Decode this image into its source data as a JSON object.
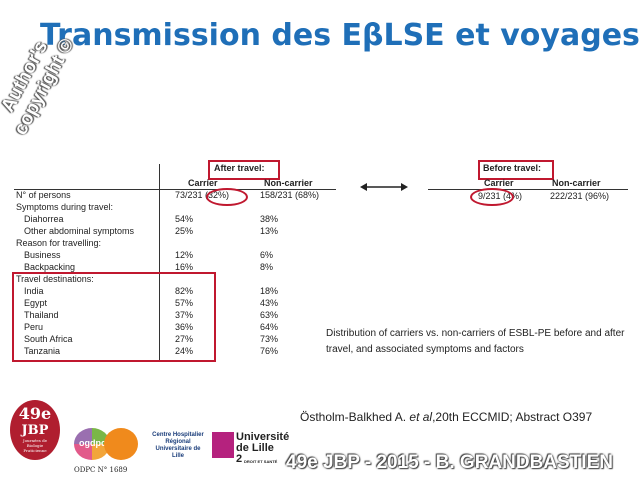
{
  "title": "Transmission des EβLSE et voyages",
  "watermark": {
    "line1": "Author's",
    "line2": "copyright ©"
  },
  "table": {
    "after_travel_header": "After travel:",
    "col_carrier": "Carrier",
    "col_noncarrier": "Non-carrier",
    "rows": [
      {
        "label": "N° of persons",
        "c1": "73/231 (32%)",
        "c2": "158/231 (68%)",
        "indent": false
      },
      {
        "label": "Symptoms during travel:",
        "c1": "",
        "c2": "",
        "indent": false
      },
      {
        "label": "Diahorrea",
        "c1": "54%",
        "c2": "38%",
        "indent": true
      },
      {
        "label": "Other abdominal symptoms",
        "c1": "25%",
        "c2": "13%",
        "indent": true
      },
      {
        "label": "Reason for travelling:",
        "c1": "",
        "c2": "",
        "indent": false
      },
      {
        "label": "Business",
        "c1": "12%",
        "c2": "6%",
        "indent": true
      },
      {
        "label": "Backpacking",
        "c1": "16%",
        "c2": "8%",
        "indent": true
      },
      {
        "label": "Travel destinations:",
        "c1": "",
        "c2": "",
        "indent": false
      },
      {
        "label": "India",
        "c1": "82%",
        "c2": "18%",
        "indent": true
      },
      {
        "label": "Egypt",
        "c1": "57%",
        "c2": "43%",
        "indent": true
      },
      {
        "label": "Thailand",
        "c1": "37%",
        "c2": "63%",
        "indent": true
      },
      {
        "label": "Peru",
        "c1": "36%",
        "c2": "64%",
        "indent": true
      },
      {
        "label": "South Africa",
        "c1": "27%",
        "c2": "73%",
        "indent": true
      },
      {
        "label": "Tanzania",
        "c1": "24%",
        "c2": "76%",
        "indent": true
      }
    ]
  },
  "before": {
    "header": "Before travel:",
    "col_carrier": "Carrier",
    "col_noncarrier": "Non-carrier",
    "carrier_value": "9/231 (4%)",
    "noncarrier_value": "222/231 (96%)"
  },
  "caption": "Distribution of carriers vs. non-carriers of ESBL-PE before and after travel, and associated symptoms and factors",
  "reference": {
    "pre": "Östholm-Balkhed A. ",
    "italic": "et al",
    "post": ",20th ECCMID; Abstract O397"
  },
  "logos": {
    "jbp_number": "49e",
    "jbp_label": "JBP",
    "jbp_sub": "Journées de Biologie Praticienne",
    "odpc": "ODPC N° 1689",
    "ogdpc": "ogdpc",
    "chrl": "Centre Hospitalier Régional Universitaire de Lille",
    "univ_line1": "Université",
    "univ_line2": "de Lille",
    "univ_num": "2",
    "univ_sub": "DROIT ET SANTÉ"
  },
  "footer": "49e JBP - 2015 - B. GRANDBASTIEN",
  "colors": {
    "title": "#1f6fb8",
    "highlight": "#c0182f",
    "jbp": "#b01e2f"
  }
}
